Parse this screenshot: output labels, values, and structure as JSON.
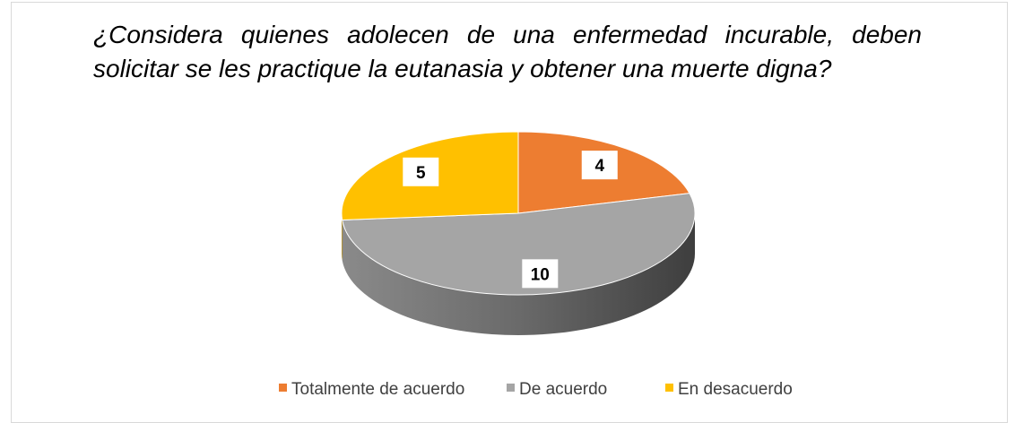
{
  "chart_data": {
    "type": "pie3d",
    "title": "¿Considera quienes adolecen de una enfermedad incurable, deben solicitar se les practique la eutanasia y obtener una muerte digna?",
    "categories": [
      "Totalmente de acuerdo",
      "De acuerdo",
      "En desacuerdo"
    ],
    "values": [
      4,
      10,
      5
    ],
    "colors": [
      "#ED7D31",
      "#A5A5A5",
      "#FFC000"
    ],
    "legend": "bottom"
  }
}
